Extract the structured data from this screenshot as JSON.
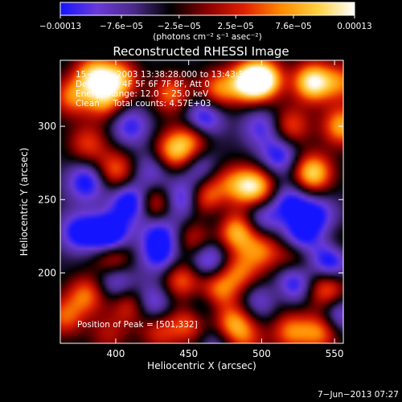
{
  "chart_data": {
    "type": "heatmap",
    "title": "Reconstructed RHESSI Image",
    "xlabel": "Heliocentric X (arcsec)",
    "ylabel": "Heliocentric Y (arcsec)",
    "xlim": [
      362,
      556
    ],
    "ylim": [
      152,
      345
    ],
    "xticks": [
      {
        "value": 400,
        "label": "400"
      },
      {
        "value": 450,
        "label": "450"
      },
      {
        "value": 500,
        "label": "500"
      },
      {
        "value": 550,
        "label": "550"
      }
    ],
    "yticks": [
      {
        "value": 200,
        "label": "200"
      },
      {
        "value": 250,
        "label": "250"
      },
      {
        "value": 300,
        "label": "300"
      }
    ],
    "colorbar": {
      "min": -0.00013,
      "max": 0.00013,
      "ticks": [
        {
          "value": -0.00013,
          "label": "−0.00013"
        },
        {
          "value": -7.6e-05,
          "label": "−7.6e−05"
        },
        {
          "value": -2.5e-05,
          "label": "−2.5e−05"
        },
        {
          "value": 2.5e-05,
          "label": "2.5e−05"
        },
        {
          "value": 7.6e-05,
          "label": "7.6e−05"
        },
        {
          "value": 0.00013,
          "label": "0.00013"
        }
      ],
      "unit_label": "(photons cm⁻² s⁻¹ asec⁻²)",
      "colors": [
        "#1414ff",
        "#6a3ad8",
        "#4a2a8a",
        "#000000",
        "#8a0000",
        "#e02000",
        "#ff8a00",
        "#ffd040",
        "#ffffff"
      ]
    },
    "annotations": {
      "line1": "15−Mar−2003 13:38:28.000 to 13:43:52.000",
      "line2": "Detectors: 4F 5F 6F 7F 8F, Att 0",
      "line3": "Energy Range: 12.0 − 25.0 keV",
      "line4": "Clean     Total counts: 4.57E+03",
      "peak": "Position of Peak = [501,332]"
    },
    "peak_position": [
      501,
      332
    ],
    "sources": [
      {
        "x": 501,
        "y": 332,
        "v": 1.0
      },
      {
        "x": 535,
        "y": 330,
        "v": 0.95
      },
      {
        "x": 490,
        "y": 330,
        "v": 0.8
      },
      {
        "x": 470,
        "y": 325,
        "v": 0.55
      },
      {
        "x": 385,
        "y": 335,
        "v": 0.75
      },
      {
        "x": 402,
        "y": 332,
        "v": 0.7
      },
      {
        "x": 370,
        "y": 320,
        "v": 0.55
      },
      {
        "x": 438,
        "y": 322,
        "v": 0.55
      },
      {
        "x": 392,
        "y": 318,
        "v": 0.6
      },
      {
        "x": 555,
        "y": 300,
        "v": 0.7
      },
      {
        "x": 535,
        "y": 268,
        "v": 0.85
      },
      {
        "x": 520,
        "y": 300,
        "v": 0.5
      },
      {
        "x": 440,
        "y": 283,
        "v": 0.7
      },
      {
        "x": 453,
        "y": 292,
        "v": 0.5
      },
      {
        "x": 400,
        "y": 270,
        "v": 0.55
      },
      {
        "x": 381,
        "y": 288,
        "v": 0.45
      },
      {
        "x": 428,
        "y": 247,
        "v": 0.55
      },
      {
        "x": 462,
        "y": 250,
        "v": 0.6
      },
      {
        "x": 497,
        "y": 258,
        "v": 0.7
      },
      {
        "x": 485,
        "y": 260,
        "v": 0.5
      },
      {
        "x": 468,
        "y": 265,
        "v": 0.3
      },
      {
        "x": 480,
        "y": 232,
        "v": 0.5
      },
      {
        "x": 485,
        "y": 225,
        "v": 0.4
      },
      {
        "x": 398,
        "y": 210,
        "v": 0.55
      },
      {
        "x": 455,
        "y": 222,
        "v": 0.45
      },
      {
        "x": 500,
        "y": 215,
        "v": 0.5
      },
      {
        "x": 522,
        "y": 212,
        "v": 0.35
      },
      {
        "x": 551,
        "y": 215,
        "v": 0.55
      },
      {
        "x": 380,
        "y": 185,
        "v": 0.55
      },
      {
        "x": 365,
        "y": 170,
        "v": 0.5
      },
      {
        "x": 410,
        "y": 178,
        "v": 0.45
      },
      {
        "x": 445,
        "y": 195,
        "v": 0.55
      },
      {
        "x": 470,
        "y": 188,
        "v": 0.6
      },
      {
        "x": 485,
        "y": 200,
        "v": 0.5
      },
      {
        "x": 512,
        "y": 188,
        "v": 0.4
      },
      {
        "x": 545,
        "y": 188,
        "v": 0.6
      },
      {
        "x": 520,
        "y": 160,
        "v": 0.55
      },
      {
        "x": 540,
        "y": 160,
        "v": 0.6
      },
      {
        "x": 450,
        "y": 165,
        "v": 0.5
      },
      {
        "x": 430,
        "y": 160,
        "v": 0.4
      },
      {
        "x": 480,
        "y": 165,
        "v": 0.65
      },
      {
        "x": 490,
        "y": 155,
        "v": 0.35
      },
      {
        "x": 395,
        "y": 158,
        "v": 0.3
      },
      {
        "x": 410,
        "y": 300,
        "v": -0.45
      },
      {
        "x": 460,
        "y": 305,
        "v": -0.6
      },
      {
        "x": 500,
        "y": 300,
        "v": -0.4
      },
      {
        "x": 425,
        "y": 270,
        "v": -0.35
      },
      {
        "x": 460,
        "y": 270,
        "v": -0.45
      },
      {
        "x": 512,
        "y": 280,
        "v": -0.5
      },
      {
        "x": 380,
        "y": 262,
        "v": -0.55
      },
      {
        "x": 410,
        "y": 248,
        "v": -0.65
      },
      {
        "x": 445,
        "y": 250,
        "v": -0.55
      },
      {
        "x": 500,
        "y": 238,
        "v": -0.4
      },
      {
        "x": 520,
        "y": 248,
        "v": -0.5
      },
      {
        "x": 375,
        "y": 228,
        "v": -0.55
      },
      {
        "x": 395,
        "y": 226,
        "v": -0.85
      },
      {
        "x": 430,
        "y": 212,
        "v": -0.5
      },
      {
        "x": 430,
        "y": 228,
        "v": -0.45
      },
      {
        "x": 463,
        "y": 210,
        "v": -0.55
      },
      {
        "x": 470,
        "y": 238,
        "v": -0.35
      },
      {
        "x": 527,
        "y": 225,
        "v": -0.55
      },
      {
        "x": 538,
        "y": 240,
        "v": -0.45
      },
      {
        "x": 548,
        "y": 210,
        "v": -0.95
      },
      {
        "x": 400,
        "y": 195,
        "v": -0.45
      },
      {
        "x": 425,
        "y": 180,
        "v": -0.45
      },
      {
        "x": 520,
        "y": 192,
        "v": -0.7
      },
      {
        "x": 500,
        "y": 182,
        "v": -0.4
      },
      {
        "x": 552,
        "y": 172,
        "v": -0.45
      },
      {
        "x": 460,
        "y": 178,
        "v": -0.3
      },
      {
        "x": 470,
        "y": 153,
        "v": -0.3
      },
      {
        "x": 555,
        "y": 330,
        "v": 0.5
      }
    ]
  },
  "footer": {
    "timestamp": "7−Jun−2013 07:27"
  }
}
